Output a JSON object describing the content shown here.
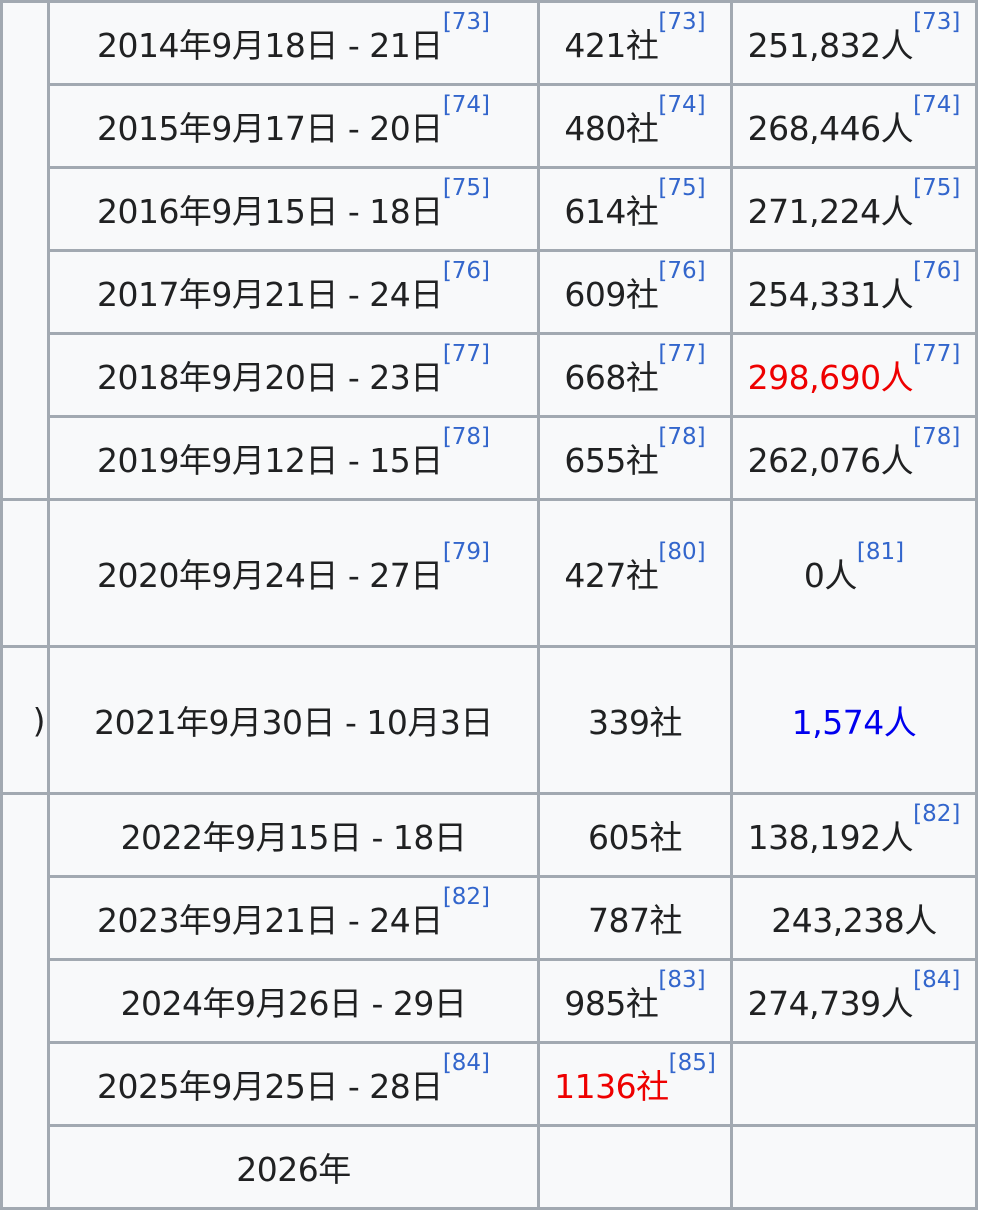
{
  "table": {
    "lead_cells": [
      "",
      "",
      ")",
      ""
    ],
    "rows": [
      {
        "date": "2014年9月18日 - 21日",
        "date_ref": "[73]",
        "companies": "421社",
        "companies_ref": "[73]",
        "attendees": "251,832人",
        "attendees_ref": "[73]"
      },
      {
        "date": "2015年9月17日 - 20日",
        "date_ref": "[74]",
        "companies": "480社",
        "companies_ref": "[74]",
        "attendees": "268,446人",
        "attendees_ref": "[74]"
      },
      {
        "date": "2016年9月15日 - 18日",
        "date_ref": "[75]",
        "companies": "614社",
        "companies_ref": "[75]",
        "attendees": "271,224人",
        "attendees_ref": "[75]"
      },
      {
        "date": "2017年9月21日 - 24日",
        "date_ref": "[76]",
        "companies": "609社",
        "companies_ref": "[76]",
        "attendees": "254,331人",
        "attendees_ref": "[76]"
      },
      {
        "date": "2018年9月20日 - 23日",
        "date_ref": "[77]",
        "companies": "668社",
        "companies_ref": "[77]",
        "attendees": "298,690人",
        "attendees_ref": "[77]",
        "attendees_color": "red"
      },
      {
        "date": "2019年9月12日 - 15日",
        "date_ref": "[78]",
        "companies": "655社",
        "companies_ref": "[78]",
        "attendees": "262,076人",
        "attendees_ref": "[78]"
      },
      {
        "date": "2020年9月24日 - 27日",
        "date_ref": "[79]",
        "companies": "427社",
        "companies_ref": "[80]",
        "attendees": "0人",
        "attendees_ref": "[81]",
        "tall": true
      },
      {
        "date": "2021年9月30日 - 10月3日",
        "date_ref": "",
        "companies": "339社",
        "companies_ref": "",
        "attendees": "1,574人",
        "attendees_ref": "",
        "attendees_color": "blue",
        "tall": true
      },
      {
        "date": "2022年9月15日 - 18日",
        "date_ref": "",
        "companies": "605社",
        "companies_ref": "",
        "attendees": "138,192人",
        "attendees_ref": "[82]"
      },
      {
        "date": "2023年9月21日 - 24日",
        "date_ref": "[82]",
        "companies": "787社",
        "companies_ref": "",
        "attendees": "243,238人",
        "attendees_ref": ""
      },
      {
        "date": "2024年9月26日 - 29日",
        "date_ref": "",
        "companies": "985社",
        "companies_ref": "[83]",
        "attendees": "274,739人",
        "attendees_ref": "[84]"
      },
      {
        "date": "2025年9月25日 - 28日",
        "date_ref": "[84]",
        "companies": "1136社",
        "companies_ref": "[85]",
        "companies_color": "red",
        "attendees": "",
        "attendees_ref": ""
      },
      {
        "date": "2026年",
        "date_ref": "",
        "companies": "",
        "companies_ref": "",
        "attendees": "",
        "attendees_ref": ""
      }
    ],
    "colors": {
      "red": "#ee0000",
      "blue": "#0000ee",
      "ref": "#3366cc",
      "border": "#a2a9b1",
      "cell_bg": "#f8f9fa"
    }
  }
}
